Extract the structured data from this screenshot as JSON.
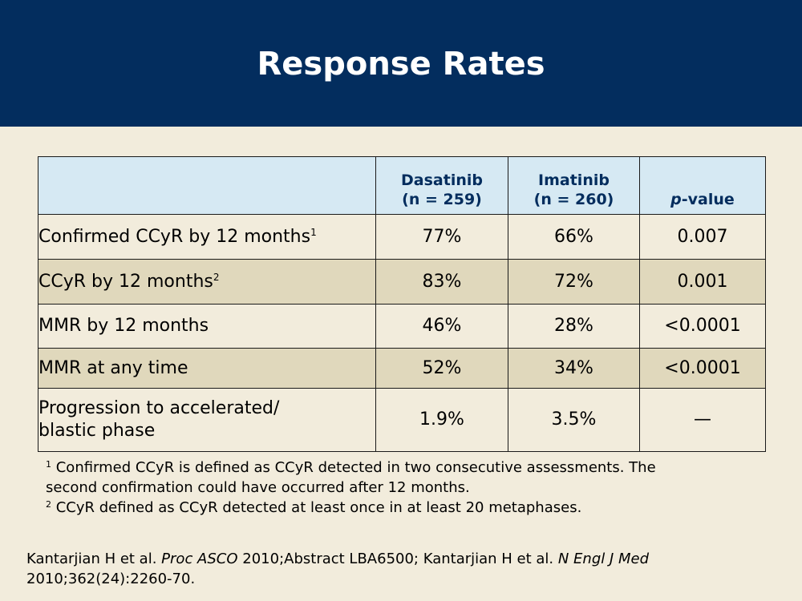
{
  "slide": {
    "title": "Response Rates"
  },
  "table": {
    "headers": [
      {
        "line1": "",
        "line2": ""
      },
      {
        "line1": "Dasatinib",
        "line2": "(n = 259)"
      },
      {
        "line1": "Imatinib",
        "line2": "(n = 260)"
      },
      {
        "italic": "p",
        "rest": "-value"
      }
    ],
    "rows": [
      {
        "label": "Confirmed CCyR by 12 months",
        "sup": "1",
        "dasatinib": "77%",
        "imatinib": "66%",
        "p_value": "0.007"
      },
      {
        "label": "CCyR by 12 months",
        "sup": "2",
        "dasatinib": "83%",
        "imatinib": "72%",
        "p_value": "0.001"
      },
      {
        "label": "MMR by 12 months",
        "sup": "",
        "dasatinib": "46%",
        "imatinib": "28%",
        "p_value": "<0.0001"
      },
      {
        "label": "MMR at any time",
        "sup": "",
        "dasatinib": "52%",
        "imatinib": "34%",
        "p_value": "<0.0001"
      },
      {
        "label_line1": "Progression to accelerated/",
        "label_line2": "blastic phase",
        "dasatinib": "1.9%",
        "imatinib": "3.5%",
        "p_value": "—"
      }
    ]
  },
  "footnotes": [
    {
      "mark": "1",
      "line1": "Confirmed CCyR is defined as CCyR detected in two consecutive assessments. The",
      "line2": "second confirmation could have occurred after 12 months."
    },
    {
      "mark": "2",
      "line1": "CCyR defined as CCyR detected at least once in at least 20 metaphases."
    }
  ],
  "reference": {
    "part1": "Kantarjian H et al. ",
    "journal1": "Proc ASCO",
    "part2": " 2010;Abstract LBA6500; Kantarjian H et al. ",
    "journal2": "N Engl J Med",
    "part3": "2010;362(24):2260-70."
  },
  "colors": {
    "header_bg": "#032d5e",
    "body_bg": "#f2ecdc",
    "table_header_bg": "#d6e9f3",
    "row_alt_bg": "#e0d8bc"
  }
}
